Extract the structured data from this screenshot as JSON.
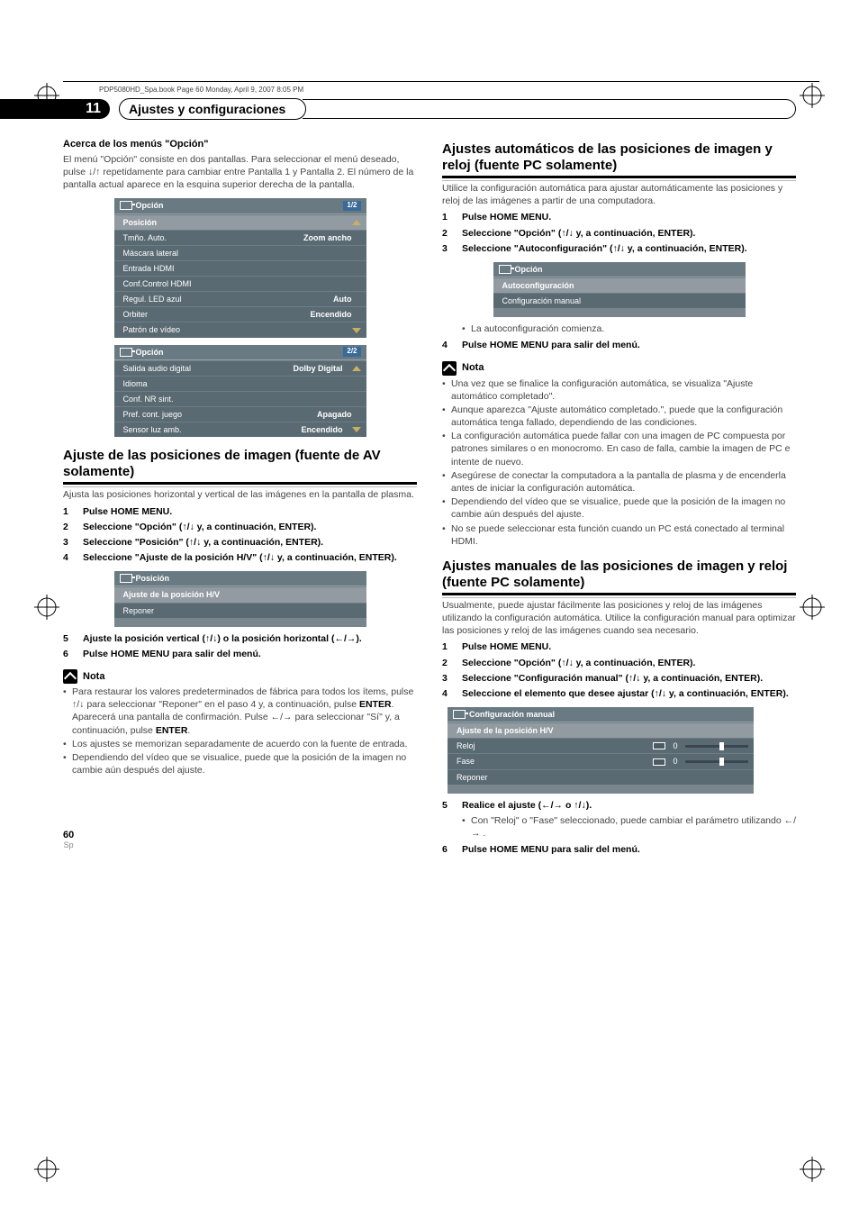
{
  "docHeader": "PDP5080HD_Spa.book  Page 60  Monday, April 9, 2007  8:05 PM",
  "chapter": {
    "num": "11",
    "title": "Ajustes y configuraciones"
  },
  "pageNumber": "60",
  "pageLang": "Sp",
  "left": {
    "subTitle": "Acerca de los menús \"Opción\"",
    "subBody": "El menú \"Opción\" consiste en dos pantallas. Para seleccionar el menú deseado, pulse ↓/↑ repetidamente para cambiar entre Pantalla 1 y Pantalla 2. El número de la pantalla actual aparece en la esquina superior derecha de la pantalla.",
    "menu1": {
      "title": "Opción",
      "page": "1/2",
      "rows": [
        {
          "label": "Posición",
          "hi": true
        },
        {
          "label": "Tmño. Auto.",
          "val": "Zoom ancho"
        },
        {
          "label": "Máscara lateral"
        },
        {
          "label": "Entrada HDMI"
        },
        {
          "label": "Conf.Control HDMI"
        },
        {
          "label": "Regul. LED azul",
          "val": "Auto"
        },
        {
          "label": "Orbiter",
          "val": "Encendido"
        },
        {
          "label": "Patrón de vídeo"
        }
      ]
    },
    "menu2": {
      "title": "Opción",
      "page": "2/2",
      "rows": [
        {
          "label": "Salida audio digital",
          "val": "Dolby Digital"
        },
        {
          "label": "Idioma"
        },
        {
          "label": "Conf. NR sint."
        },
        {
          "label": "Pref. cont. juego",
          "val": "Apagado"
        },
        {
          "label": "Sensor luz amb.",
          "val": "Encendido"
        }
      ]
    },
    "secTitle": "Ajuste de las posiciones de imagen (fuente de AV solamente)",
    "secBody": "Ajusta las posiciones horizontal y vertical de las imágenes en la pantalla de plasma.",
    "steps": {
      "s1": "Pulse HOME MENU.",
      "s2": "Seleccione \"Opción\" (↑/↓ y, a continuación, ENTER).",
      "s3": "Seleccione \"Posición\" (↑/↓ y, a continuación, ENTER).",
      "s4": "Seleccione \"Ajuste de la posición H/V\" (↑/↓ y, a continuación, ENTER).",
      "s5": "Ajuste la posición vertical (↑/↓) o la posición horizontal (←/→).",
      "s6": "Pulse HOME MENU para salir del menú."
    },
    "menu3": {
      "title": "Posición",
      "rows": [
        {
          "label": "Ajuste de la posición H/V",
          "hi": true
        },
        {
          "label": "Reponer"
        }
      ]
    },
    "noteLabel": "Nota",
    "notes": {
      "n1a": "Para restaurar los valores predeterminados de fábrica para todos los ítems, pulse ↑/↓ para seleccionar \"Reponer\" en el paso 4 y, a continuación, pulse ",
      "n1b": "ENTER",
      "n1c": ". Aparecerá una pantalla de confirmación. Pulse ←/→ para seleccionar \"Sí\" y, a continuación, pulse ",
      "n1d": "ENTER",
      "n1e": ".",
      "n2": "Los ajustes se memorizan separadamente de acuerdo con la fuente de entrada.",
      "n3": "Dependiendo del vídeo que se visualice, puede que la posición de la imagen no cambie aún después del ajuste."
    }
  },
  "right": {
    "sec1Title": "Ajustes automáticos de las posiciones de imagen y reloj (fuente PC solamente)",
    "sec1Body": "Utilice la configuración automática para ajustar automáticamente las posiciones y reloj de las imágenes a partir de una computadora.",
    "steps1": {
      "s1": "Pulse HOME MENU.",
      "s2": "Seleccione \"Opción\" (↑/↓ y, a continuación, ENTER).",
      "s3": "Seleccione \"Autoconfiguración\" (↑/↓ y, a continuación, ENTER).",
      "s3sub": "La autoconfiguración comienza.",
      "s4": "Pulse HOME MENU para salir del menú."
    },
    "menuA": {
      "title": "Opción",
      "rows": [
        {
          "label": "Autoconfiguración",
          "hi": true
        },
        {
          "label": "Configuración manual"
        }
      ]
    },
    "noteLabel": "Nota",
    "notes1": {
      "n1": "Una vez que se finalice la configuración automática, se visualiza \"Ajuste automático completado\".",
      "n2": "Aunque aparezca \"Ajuste automático completado.\", puede que la configuración automática tenga fallado, dependiendo de las condiciones.",
      "n3": "La configuración automática puede fallar con una imagen de PC compuesta por patrones similares o en monocromo. En caso de falla, cambie la imagen de PC e intente de nuevo.",
      "n4": "Asegúrese de conectar la computadora a la pantalla de plasma y de encenderla antes de iniciar la configuración automática.",
      "n5": "Dependiendo del vídeo que se visualice, puede que la posición de la imagen no cambie aún después del ajuste.",
      "n6": "No se puede seleccionar esta función cuando un PC está conectado al terminal HDMI."
    },
    "sec2Title": "Ajustes manuales de las posiciones de imagen y reloj (fuente PC solamente)",
    "sec2Body": "Usualmente, puede ajustar fácilmente las posiciones y reloj de las imágenes utilizando la configuración automática. Utilice la configuración manual para optimizar las posiciones y reloj de las imágenes cuando sea necesario.",
    "steps2": {
      "s1": "Pulse HOME MENU.",
      "s2": "Seleccione \"Opción\" (↑/↓ y, a continuación, ENTER).",
      "s3": "Seleccione \"Configuración manual\" (↑/↓ y, a continuación, ENTER).",
      "s4": "Seleccione el elemento que desee ajustar (↑/↓ y, a continuación, ENTER).",
      "s5": "Realice el ajuste (←/→ o ↑/↓).",
      "s5sub": "Con \"Reloj\" o \"Fase\" seleccionado, puede cambiar el parámetro utilizando ←/→ .",
      "s6": "Pulse HOME MENU para salir del menú."
    },
    "menuB": {
      "title": "Configuración manual",
      "rows": [
        {
          "label": "Ajuste de la posición H/V",
          "hi": true
        },
        {
          "label": "Reloj",
          "slider": true,
          "num": "0"
        },
        {
          "label": "Fase",
          "slider": true,
          "num": "0"
        },
        {
          "label": "Reponer"
        }
      ]
    }
  }
}
